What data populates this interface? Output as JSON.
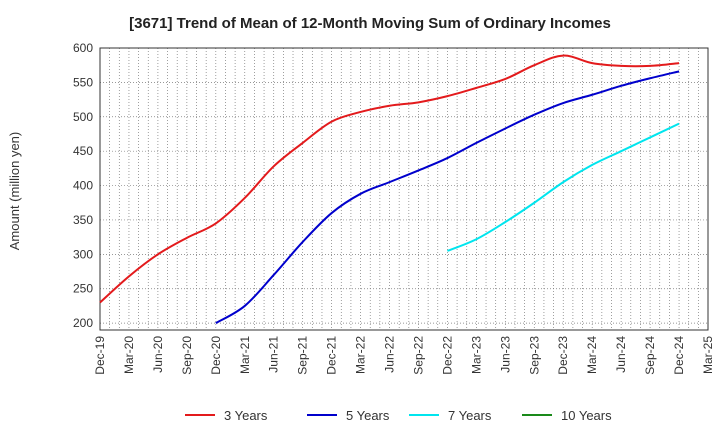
{
  "chart_data": {
    "type": "line",
    "title": "[3671]  Trend of Mean of 12-Month Moving Sum of Ordinary Incomes",
    "xlabel": "",
    "ylabel": "Amount (million yen)",
    "ylim": [
      190,
      600
    ],
    "yticks": [
      200,
      250,
      300,
      350,
      400,
      450,
      500,
      550,
      600
    ],
    "categories": [
      "Dec-19",
      "Mar-20",
      "Jun-20",
      "Sep-20",
      "Dec-20",
      "Mar-21",
      "Jun-21",
      "Sep-21",
      "Dec-21",
      "Mar-22",
      "Jun-22",
      "Sep-22",
      "Dec-22",
      "Mar-23",
      "Jun-23",
      "Sep-23",
      "Dec-23",
      "Mar-24",
      "Jun-24",
      "Sep-24",
      "Dec-24",
      "Mar-25"
    ],
    "grid": true,
    "legend_position": "bottom",
    "series": [
      {
        "name": "3 Years",
        "color": "#e31a1c",
        "values": [
          230,
          268,
          300,
          324,
          345,
          382,
          428,
          462,
          493,
          507,
          516,
          521,
          530,
          542,
          555,
          575,
          589,
          578,
          574,
          574,
          578,
          null
        ]
      },
      {
        "name": "5 Years",
        "color": "#0000cc",
        "values": [
          null,
          null,
          null,
          null,
          200,
          225,
          270,
          318,
          360,
          388,
          405,
          422,
          440,
          462,
          483,
          503,
          520,
          532,
          545,
          556,
          566,
          null
        ]
      },
      {
        "name": "7 Years",
        "color": "#00e5ee",
        "values": [
          null,
          null,
          null,
          null,
          null,
          null,
          null,
          null,
          null,
          null,
          null,
          null,
          305,
          322,
          347,
          375,
          405,
          430,
          450,
          470,
          490,
          null
        ]
      },
      {
        "name": "10 Years",
        "color": "#1a8a1a",
        "values": [
          null,
          null,
          null,
          null,
          null,
          null,
          null,
          null,
          null,
          null,
          null,
          null,
          null,
          null,
          null,
          null,
          null,
          null,
          null,
          null,
          null,
          null
        ]
      }
    ]
  }
}
